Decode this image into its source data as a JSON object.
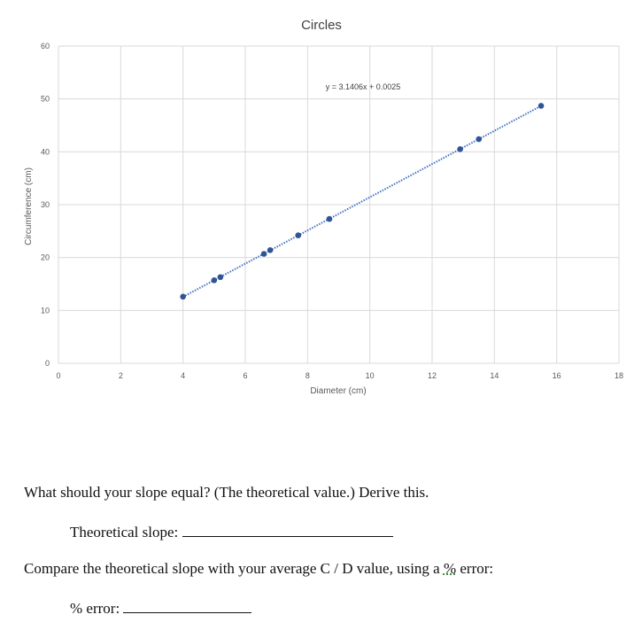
{
  "chart_data": {
    "type": "scatter",
    "title": "Circles",
    "xlabel": "Diameter (cm)",
    "ylabel": "Circumference (cm)",
    "xlim": [
      0,
      18
    ],
    "ylim": [
      0,
      60
    ],
    "xticks": [
      0,
      2,
      4,
      6,
      8,
      10,
      12,
      14,
      16,
      18
    ],
    "yticks": [
      0,
      10,
      20,
      30,
      40,
      50,
      60
    ],
    "grid": true,
    "point_color": "#2f5597",
    "trendline": {
      "type": "linear",
      "slope": 3.1406,
      "intercept": 0.0025,
      "equation": "y = 3.1406x + 0.0025",
      "style": "dotted",
      "color": "#4472c4"
    },
    "series": [
      {
        "x": [
          4.0,
          5.0,
          5.2,
          6.6,
          6.8,
          7.7,
          8.7,
          12.9,
          13.5,
          15.5
        ],
        "y": [
          12.6,
          15.7,
          16.3,
          20.7,
          21.4,
          24.2,
          27.3,
          40.5,
          42.4,
          48.7
        ]
      }
    ]
  },
  "questions": {
    "q1": "What should your slope equal? (The theoretical value.) Derive this.",
    "q1_label": "Theoretical slope:",
    "q2_before": "Compare the theoretical slope with your average C / D value, using a ",
    "q2_pct": "%",
    "q2_after": " error:",
    "q2_label": "% error:"
  }
}
